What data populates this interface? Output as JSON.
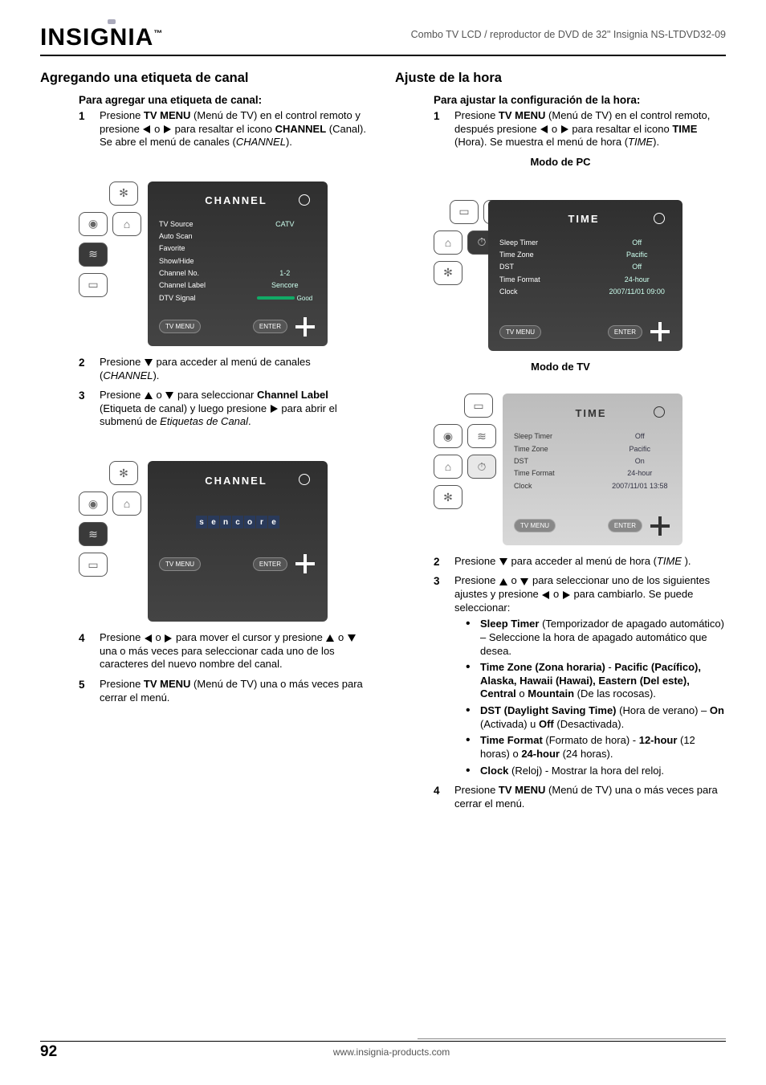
{
  "header": {
    "brand": "INSIGNIA",
    "product_line": "Combo TV LCD / reproductor de DVD de 32\" Insignia NS-LTDVD32-09"
  },
  "left": {
    "section_title": "Agregando una etiqueta de canal",
    "sub_title": "Para agregar una etiqueta de canal:",
    "step1_a": "Presione ",
    "step1_b": "TV MENU",
    "step1_c": " (Menú de TV) en el control remoto y presione ",
    "step1_d": " o ",
    "step1_e": " para resaltar el icono ",
    "step1_f": "CHANNEL",
    "step1_g": " (Canal). Se abre el menú de canales (",
    "step1_h": "CHANNEL",
    "step1_i": ").",
    "osd1": {
      "title": "CHANNEL",
      "rows": [
        {
          "lbl": "TV Source",
          "val": "CATV"
        },
        {
          "lbl": "Auto Scan",
          "val": ""
        },
        {
          "lbl": "Favorite",
          "val": ""
        },
        {
          "lbl": "Show/Hide",
          "val": ""
        },
        {
          "lbl": "Channel No.",
          "val": "1-2"
        },
        {
          "lbl": "Channel Label",
          "val": "Sencore"
        },
        {
          "lbl": "DTV Signal",
          "val": "Good",
          "bar": true
        }
      ],
      "btn_menu": "TV MENU",
      "btn_enter": "ENTER"
    },
    "step2_a": "Presione ",
    "step2_b": " para acceder al menú de canales (",
    "step2_c": "CHANNEL",
    "step2_d": ").",
    "step3_a": "Presione ",
    "step3_b": " o ",
    "step3_c": " para seleccionar ",
    "step3_d": "Channel Label",
    "step3_e": " (Etiqueta de canal) y luego presione ",
    "step3_f": " para abrir el submenú de ",
    "step3_g": "Etiquetas de Canal",
    "step3_h": ".",
    "osd2": {
      "title": "CHANNEL",
      "label_chars": [
        "s",
        "e",
        "n",
        "c",
        "o",
        "r",
        "e"
      ],
      "btn_menu": "TV MENU",
      "btn_enter": "ENTER"
    },
    "step4_a": "Presione ",
    "step4_b": " o ",
    "step4_c": " para mover el cursor y presione ",
    "step4_d": " o ",
    "step4_e": " una o más veces para seleccionar cada uno de los caracteres del nuevo nombre del canal.",
    "step5_a": "Presione ",
    "step5_b": "TV MENU",
    "step5_c": " (Menú de TV) una o más veces para cerrar el menú."
  },
  "right": {
    "section_title": "Ajuste de la hora",
    "sub_title": "Para ajustar la configuración de la hora:",
    "step1_a": "Presione ",
    "step1_b": "TV MENU",
    "step1_c": " (Menú de TV) en el control remoto, después presione ",
    "step1_d": " o ",
    "step1_e": " para resaltar el icono ",
    "step1_f": "TIME",
    "step1_g": " (Hora). Se muestra el menú de hora (",
    "step1_h": "TIME",
    "step1_i": ").",
    "mode_pc": "Modo de PC",
    "osd_pc": {
      "title": "TIME",
      "rows": [
        {
          "lbl": "Sleep Timer",
          "val": "Off"
        },
        {
          "lbl": "Time Zone",
          "val": "Pacific"
        },
        {
          "lbl": "DST",
          "val": "Off"
        },
        {
          "lbl": "Time Format",
          "val": "24-hour"
        },
        {
          "lbl": "Clock",
          "val": "2007/11/01 09:00"
        }
      ],
      "btn_menu": "TV MENU",
      "btn_enter": "ENTER"
    },
    "mode_tv": "Modo de TV",
    "osd_tv": {
      "title": "TIME",
      "rows": [
        {
          "lbl": "Sleep Timer",
          "val": "Off"
        },
        {
          "lbl": "Time Zone",
          "val": "Pacific"
        },
        {
          "lbl": "DST",
          "val": "On"
        },
        {
          "lbl": "Time Format",
          "val": "24-hour"
        },
        {
          "lbl": "Clock",
          "val": "2007/11/01 13:58"
        }
      ],
      "btn_menu": "TV MENU",
      "btn_enter": "ENTER"
    },
    "step2_a": "Presione ",
    "step2_b": " para acceder al menú de hora (",
    "step2_c": "TIME ",
    "step2_d": ").",
    "step3_a": "Presione ",
    "step3_b": " o ",
    "step3_c": " para seleccionar uno de los siguientes ajustes y presione ",
    "step3_d": " o ",
    "step3_e": " para cambiarlo. Se puede seleccionar:",
    "bullets": {
      "b1_a": "Sleep Timer",
      "b1_b": " (Temporizador de apagado automático) – Seleccione la hora de apagado automático que desea.",
      "b2_a": "Time Zone (Zona horaria)",
      "b2_b": " - ",
      "b2_c": "Pacific (Pacífico), Alaska, Hawaii (Hawai), Eastern (Del este), Central",
      "b2_d": " o ",
      "b2_e": "Mountain",
      "b2_f": " (De las rocosas).",
      "b3_a": "DST (Daylight Saving Time)",
      "b3_b": " (Hora de verano) – ",
      "b3_c": "On",
      "b3_d": " (Activada) u ",
      "b3_e": "Off",
      "b3_f": " (Desactivada).",
      "b4_a": "Time Format",
      "b4_b": " (Formato de hora) - ",
      "b4_c": "12-hour",
      "b4_d": " (12 horas) o ",
      "b4_e": "24-hour",
      "b4_f": " (24 horas).",
      "b5_a": "Clock",
      "b5_b": " (Reloj) - Mostrar la hora del reloj."
    },
    "step4_a": "Presione ",
    "step4_b": "TV MENU",
    "step4_c": " (Menú de TV) una o más veces para cerrar el menú."
  },
  "footer": {
    "page": "92",
    "url": "www.insignia-products.com"
  },
  "colors": {
    "osd_dark_bg": "#3a3a3a",
    "osd_light_bg": "#c9c9c9",
    "accent": "#1a6",
    "charbox": "#2a3a5a"
  }
}
